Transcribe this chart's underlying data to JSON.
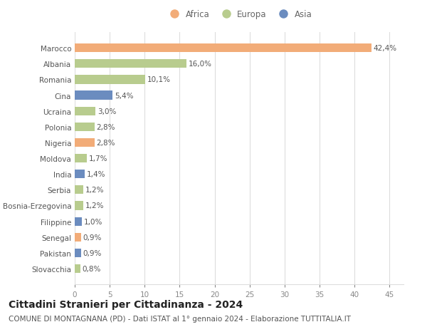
{
  "countries": [
    "Slovacchia",
    "Pakistan",
    "Senegal",
    "Filippine",
    "Bosnia-Erzegovina",
    "Serbia",
    "India",
    "Moldova",
    "Nigeria",
    "Polonia",
    "Ucraina",
    "Cina",
    "Romania",
    "Albania",
    "Marocco"
  ],
  "values": [
    0.8,
    0.9,
    0.9,
    1.0,
    1.2,
    1.2,
    1.4,
    1.7,
    2.8,
    2.8,
    3.0,
    5.4,
    10.1,
    16.0,
    42.4
  ],
  "labels": [
    "0,8%",
    "0,9%",
    "0,9%",
    "1,0%",
    "1,2%",
    "1,2%",
    "1,4%",
    "1,7%",
    "2,8%",
    "2,8%",
    "3,0%",
    "5,4%",
    "10,1%",
    "16,0%",
    "42,4%"
  ],
  "continents": [
    "Europa",
    "Asia",
    "Africa",
    "Asia",
    "Europa",
    "Europa",
    "Asia",
    "Europa",
    "Africa",
    "Europa",
    "Europa",
    "Asia",
    "Europa",
    "Europa",
    "Africa"
  ],
  "colors": {
    "Africa": "#F2AC78",
    "Europa": "#B8CC8E",
    "Asia": "#6B8CBF"
  },
  "legend_order": [
    "Africa",
    "Europa",
    "Asia"
  ],
  "title": "Cittadini Stranieri per Cittadinanza - 2024",
  "subtitle": "COMUNE DI MONTAGNANA (PD) - Dati ISTAT al 1° gennaio 2024 - Elaborazione TUTTITALIA.IT",
  "xlim": [
    0,
    47
  ],
  "xticks": [
    0,
    5,
    10,
    15,
    20,
    25,
    30,
    35,
    40,
    45
  ],
  "background_color": "#ffffff",
  "grid_color": "#dddddd",
  "title_fontsize": 10,
  "subtitle_fontsize": 7.5,
  "label_fontsize": 7.5,
  "ytick_fontsize": 7.5,
  "xtick_fontsize": 7.5
}
